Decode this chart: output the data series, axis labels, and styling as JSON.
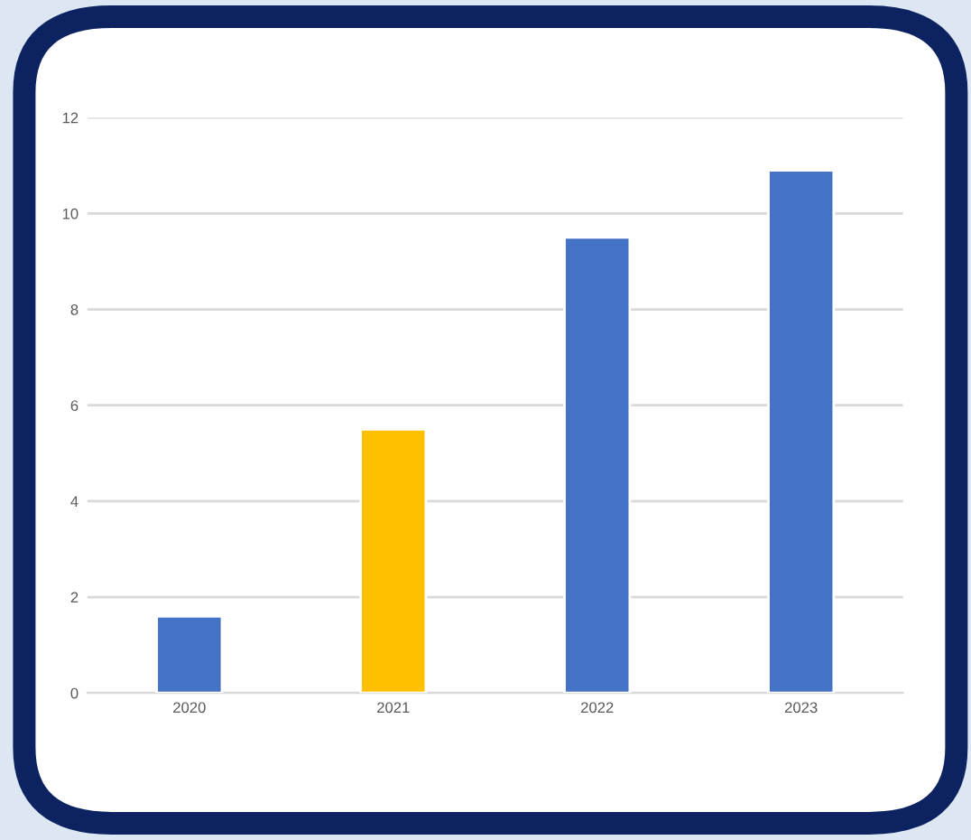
{
  "chart_data": {
    "type": "bar",
    "categories": [
      "2020",
      "2021",
      "2022",
      "2023"
    ],
    "values": [
      1.6,
      5.5,
      9.5,
      10.9
    ],
    "colors": [
      "#4472c4",
      "#ffc000",
      "#4472c4",
      "#4472c4"
    ],
    "ylim": [
      0,
      12
    ],
    "yticks": [
      0,
      2,
      4,
      6,
      8,
      10,
      12
    ],
    "grid": "y"
  }
}
